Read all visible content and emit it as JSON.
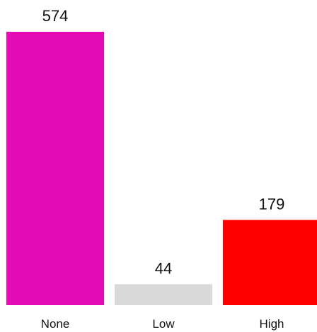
{
  "chart_data": {
    "type": "bar",
    "title": "",
    "xlabel": "",
    "ylabel": "",
    "categories": [
      "None",
      "Low",
      "High"
    ],
    "values": [
      574,
      44,
      179
    ],
    "colors": [
      "#e30bb5",
      "#d9d9d9",
      "#fe0000"
    ],
    "ylim": [
      0,
      574
    ],
    "grid": false,
    "data_labels": true
  }
}
